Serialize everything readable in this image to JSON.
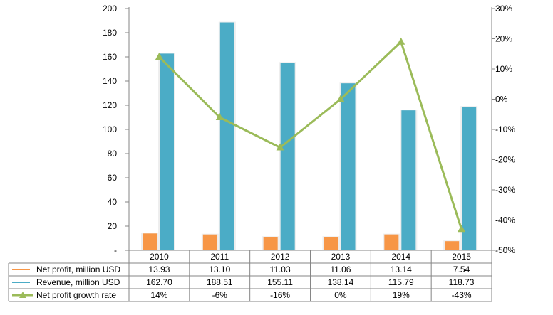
{
  "chart_data": {
    "type": "bar",
    "categories": [
      "2010",
      "2011",
      "2012",
      "2013",
      "2014",
      "2015"
    ],
    "series": [
      {
        "name": "Net profit, million USD",
        "kind": "bar",
        "axis": "left",
        "color": "#f79646",
        "values": [
          13.93,
          13.1,
          11.03,
          11.06,
          13.14,
          7.54
        ],
        "labels": [
          "13.93",
          "13.10",
          "11.03",
          "11.06",
          "13.14",
          "7.54"
        ]
      },
      {
        "name": "Revenue, million USD",
        "kind": "bar",
        "axis": "left",
        "color": "#4bacc6",
        "values": [
          162.7,
          188.51,
          155.11,
          138.14,
          115.79,
          118.73
        ],
        "labels": [
          "162.70",
          "188.51",
          "155.11",
          "138.14",
          "115.79",
          "118.73"
        ]
      },
      {
        "name": "Net profit growth rate",
        "kind": "line",
        "axis": "right",
        "color": "#9bbb59",
        "values": [
          14,
          -6,
          -16,
          0,
          19,
          -43
        ],
        "labels": [
          "14%",
          "-6%",
          "-16%",
          "0%",
          "19%",
          "-43%"
        ]
      }
    ],
    "y_left": {
      "ylim": [
        0,
        200
      ],
      "ticks": [
        "-",
        "20",
        "40",
        "60",
        "80",
        "100",
        "120",
        "140",
        "160",
        "180",
        "200"
      ]
    },
    "y_right": {
      "ylim": [
        -50,
        30
      ],
      "ticks": [
        "-50%",
        "-40%",
        "-30%",
        "-20%",
        "-10%",
        "0%",
        "10%",
        "20%",
        "30%"
      ]
    },
    "data_table": true,
    "grid": false
  }
}
